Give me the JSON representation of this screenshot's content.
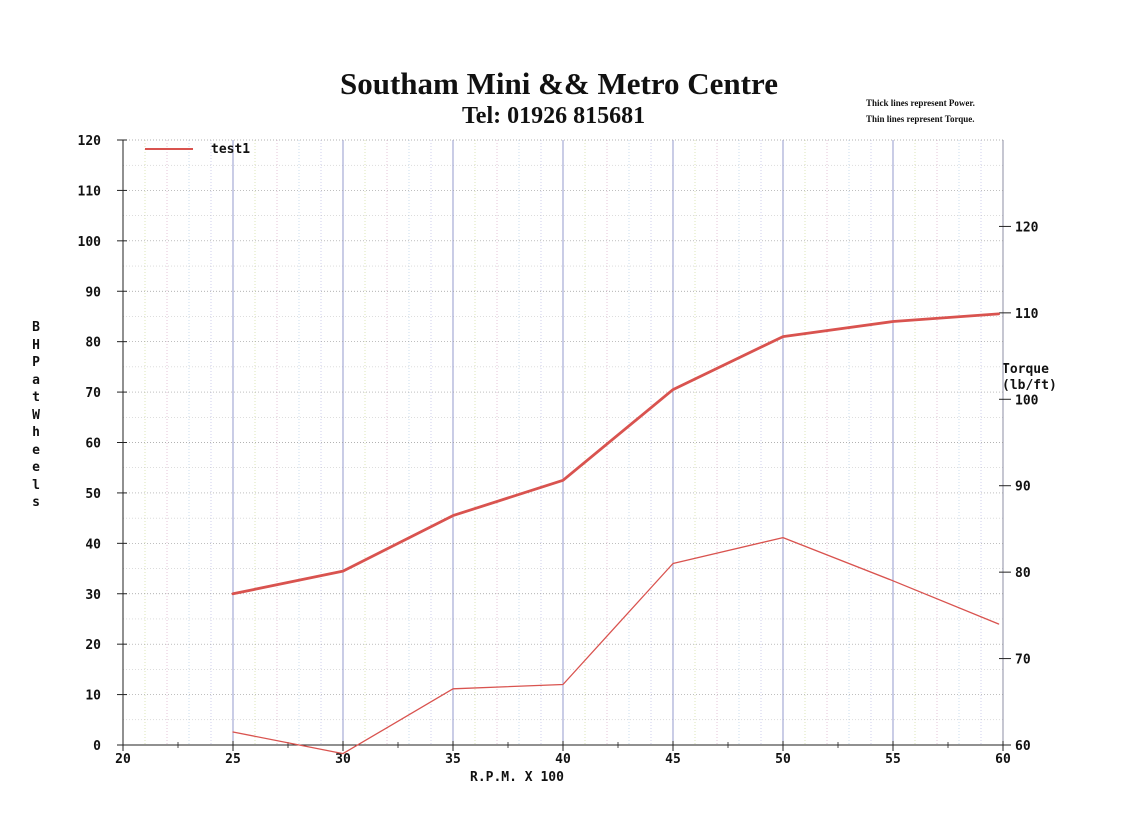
{
  "header": {
    "title": "Southam Mini && Metro Centre",
    "subtitle": "Tel: 01926 815681",
    "note_power": "Thick lines represent Power.",
    "note_torque": "Thin lines represent Torque."
  },
  "colors": {
    "series": "#d9534f",
    "axis": "#222222"
  },
  "chart_data": {
    "type": "line",
    "title": "Southam Mini && Metro Centre",
    "subtitle": "Tel: 01926 815681",
    "xlabel": "R.P.M. X 100",
    "ylabel": "BHP at Wheels",
    "ylabel_right_line1": "Torque",
    "ylabel_right_line2": "(lb/ft)",
    "xlim": [
      20,
      60
    ],
    "ylim": [
      0,
      120
    ],
    "ylim_right": [
      60,
      130
    ],
    "x_ticks": [
      "20",
      "25",
      "30",
      "35",
      "40",
      "45",
      "50",
      "55",
      "60"
    ],
    "y_ticks": [
      "0",
      "10",
      "20",
      "30",
      "40",
      "50",
      "60",
      "70",
      "80",
      "90",
      "100",
      "110",
      "120"
    ],
    "y_right_ticks": [
      "60",
      "70",
      "80",
      "90",
      "100",
      "110",
      "120"
    ],
    "grid": true,
    "legend": {
      "position": "top-left",
      "entries": [
        "test1"
      ]
    },
    "series": [
      {
        "name": "test1",
        "measure": "power",
        "axis": "left",
        "points": [
          [
            25,
            30
          ],
          [
            30,
            34.5
          ],
          [
            35,
            45.5
          ],
          [
            40,
            52.5
          ],
          [
            45,
            70.5
          ],
          [
            50,
            81
          ],
          [
            55,
            84
          ],
          [
            59.8,
            85.5
          ]
        ]
      },
      {
        "name": "test1",
        "measure": "torque",
        "axis": "right",
        "points": [
          [
            25,
            61.5
          ],
          [
            30,
            59
          ],
          [
            35,
            66.5
          ],
          [
            40,
            67
          ],
          [
            45,
            81
          ],
          [
            50,
            84
          ],
          [
            55,
            79
          ],
          [
            59.8,
            74
          ]
        ]
      }
    ]
  }
}
